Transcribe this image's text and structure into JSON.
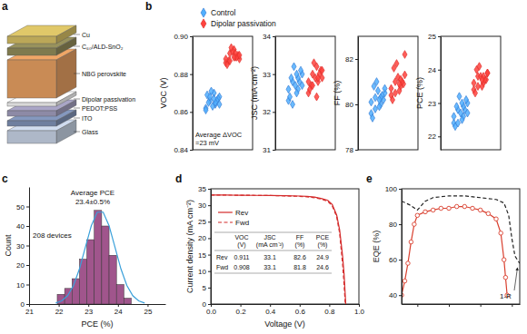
{
  "panel_labels": [
    "a",
    "b",
    "c",
    "d",
    "e"
  ],
  "diagram": {
    "layers": [
      "Cu",
      "C₆₀/ALD-SnO₂",
      "NBG perovskite",
      "Dipolar passivation",
      "PEDOT:PSS",
      "ITO",
      "Glass"
    ]
  },
  "chart_data": [
    {
      "type": "strip",
      "ylabel": "VOC (V)",
      "ylim": [
        0.84,
        0.9
      ],
      "yticks": [
        0.84,
        0.86,
        0.88,
        {
          "value": 0.9,
          "label": "0.90"
        }
      ],
      "tick_labels": "y",
      "legend": "top",
      "annotation": [
        "Average ΔVOC",
        "=23 mV"
      ],
      "series": [
        {
          "name": "Control",
          "color": "#3a7fd5",
          "marker": "diamond",
          "values": [
            0.862,
            0.864,
            0.866,
            0.868,
            0.87,
            0.865,
            0.867,
            0.863,
            0.869,
            0.866,
            0.871,
            0.861,
            0.865,
            0.868,
            0.864,
            0.867
          ]
        },
        {
          "name": "Dipolar passivation",
          "color": "#e0302c",
          "marker": "diamond",
          "values": [
            0.886,
            0.889,
            0.891,
            0.888,
            0.893,
            0.887,
            0.89,
            0.892,
            0.885,
            0.889,
            0.894,
            0.888,
            0.891,
            0.887,
            0.89,
            0.889
          ]
        }
      ]
    },
    {
      "type": "strip",
      "ylabel": "JSC (mA cm⁻²)",
      "ylim": [
        31,
        34
      ],
      "yticks": [
        31,
        32,
        33,
        34
      ],
      "tick_labels": "y",
      "series": [
        {
          "color": "#3a7fd5",
          "marker": "diamond",
          "values": [
            32.3,
            32.6,
            32.8,
            33.0,
            32.5,
            32.9,
            33.1,
            32.7,
            32.4,
            32.8,
            33.2,
            32.6,
            32.9,
            32.2,
            32.7,
            33.0
          ]
        },
        {
          "color": "#e0302c",
          "marker": "diamond",
          "values": [
            32.5,
            32.8,
            33.0,
            32.9,
            33.2,
            32.7,
            33.1,
            32.9,
            32.6,
            33.0,
            33.3,
            32.8,
            32.9,
            32.7,
            33.1,
            32.4
          ]
        }
      ]
    },
    {
      "type": "strip",
      "ylabel": "FF (%)",
      "ylim": [
        78,
        83
      ],
      "yticks": [
        78,
        80,
        82
      ],
      "tick_labels": "y",
      "series": [
        {
          "color": "#3a7fd5",
          "marker": "diamond",
          "values": [
            79.6,
            80.0,
            80.3,
            80.5,
            79.9,
            80.8,
            80.2,
            80.6,
            79.4,
            80.4,
            81.0,
            80.1,
            80.3,
            79.8,
            80.7,
            80.2
          ]
        },
        {
          "color": "#e0302c",
          "marker": "diamond",
          "values": [
            80.4,
            80.8,
            81.0,
            81.3,
            80.6,
            81.6,
            80.9,
            81.2,
            80.2,
            81.0,
            81.8,
            80.7,
            81.1,
            80.5,
            82.2,
            80.9
          ]
        }
      ]
    },
    {
      "type": "strip",
      "ylabel": "PCE (%)",
      "ylim": [
        21.6,
        25
      ],
      "yticks": [
        22,
        23,
        24,
        25
      ],
      "tick_labels": "y",
      "series": [
        {
          "color": "#3a7fd5",
          "marker": "diamond",
          "values": [
            22.4,
            22.6,
            22.8,
            23.0,
            22.5,
            22.9,
            23.1,
            22.7,
            22.3,
            22.8,
            23.2,
            22.6,
            22.9,
            22.4,
            22.7,
            23.0
          ]
        },
        {
          "color": "#e0302c",
          "marker": "diamond",
          "values": [
            23.4,
            23.6,
            23.8,
            23.9,
            23.5,
            24.0,
            23.7,
            23.8,
            23.3,
            23.7,
            24.1,
            23.6,
            23.8,
            23.5,
            23.9,
            23.7
          ]
        }
      ]
    },
    {
      "type": "histogram",
      "xlabel": "PCE (%)",
      "ylabel": "Count",
      "xlim": [
        21,
        25.6
      ],
      "xticks": [
        21,
        22,
        23,
        24,
        25
      ],
      "ylim": [
        0,
        60
      ],
      "yticks": [
        0,
        10,
        20,
        30,
        40,
        50
      ],
      "annotations": [
        "Average PCE",
        "23.4±0.5%",
        "208 devices"
      ],
      "series": [
        {
          "type": "bar",
          "color": "#a0558c",
          "bins": [
            21.95,
            22.2,
            22.45,
            22.7,
            22.95,
            23.2,
            23.45,
            23.7,
            23.95,
            24.2,
            24.45
          ],
          "values": [
            5,
            8,
            13,
            23,
            33,
            48,
            40,
            25,
            10,
            3
          ]
        },
        {
          "type": "line",
          "color": "#3aa0da",
          "x": [
            21.9,
            22.1,
            22.3,
            22.5,
            22.7,
            22.9,
            23.1,
            23.3,
            23.5,
            23.7,
            23.9,
            24.1,
            24.3,
            24.5,
            24.7,
            24.9
          ],
          "values": [
            0.5,
            1.6,
            4.3,
            9.5,
            18,
            29.1,
            40.1,
            47.1,
            47.1,
            40.1,
            29.1,
            18,
            9.5,
            4.3,
            1.6,
            0.5
          ]
        }
      ]
    },
    {
      "type": "line",
      "xlabel": "Voltage (V)",
      "ylabel": "Current density (mA cm⁻²)",
      "xlim": [
        0,
        1
      ],
      "xticks": [
        {
          "value": 0,
          "label": "0.0"
        },
        0.2,
        0.4,
        0.6,
        0.8,
        {
          "value": 1,
          "label": "1.0"
        }
      ],
      "ylim": [
        0,
        35
      ],
      "yticks": [
        0,
        5,
        10,
        15,
        20,
        25,
        30,
        35
      ],
      "legend": "left",
      "x": [
        0,
        0.1,
        0.2,
        0.3,
        0.4,
        0.5,
        0.6,
        0.65,
        0.7,
        0.75,
        0.79,
        0.82,
        0.85,
        0.87,
        0.89,
        0.9,
        0.908,
        0.911
      ],
      "series": [
        {
          "name": "Rev",
          "color": "#d42b2b",
          "line_style": "solid",
          "values": [
            33.1,
            33.08,
            33.05,
            33.0,
            32.95,
            32.9,
            32.8,
            32.7,
            32.5,
            32.0,
            31.5,
            30.2,
            27.0,
            22.5,
            14.5,
            9.0,
            2.5,
            0
          ]
        },
        {
          "name": "Fwd",
          "color": "#d42b2b",
          "line_style": "dashed",
          "values": [
            33.1,
            33.08,
            33.05,
            33.0,
            32.95,
            32.85,
            32.7,
            32.55,
            32.3,
            31.8,
            31.2,
            29.8,
            26.5,
            21.5,
            12.0,
            5.8,
            0,
            null
          ]
        }
      ],
      "table": {
        "columns": [
          [
            "VOC",
            "(V)"
          ],
          [
            "JSC",
            "(mA cm⁻²)"
          ],
          [
            "FF",
            "(%)"
          ],
          [
            "PCE",
            "(%)"
          ]
        ],
        "rows": [
          {
            "label": "Rev",
            "cells": [
              "0.911",
              "33.1",
              "82.6",
              "24.9"
            ]
          },
          {
            "label": "Fwd",
            "cells": [
              "0.908",
              "33.1",
              "81.8",
              "24.6"
            ]
          }
        ]
      }
    },
    {
      "type": "line",
      "ylabel": "EQE (%)",
      "xlim": [
        300,
        1050
      ],
      "xticks": [
        400,
        600,
        800,
        1000
      ],
      "ylim": [
        35,
        100
      ],
      "yticks": [
        40,
        60,
        80,
        100
      ],
      "tick_labels": "y",
      "series": [
        {
          "color": "#d9402f",
          "marker": "circle",
          "line_style": "solid",
          "x": [
            300,
            320,
            340,
            360,
            380,
            400,
            450,
            500,
            550,
            600,
            650,
            700,
            750,
            800,
            850,
            900,
            930,
            950,
            960,
            970
          ],
          "values": [
            40,
            48,
            58,
            70,
            80,
            85,
            87,
            88,
            89,
            89,
            90,
            90,
            89,
            88,
            86,
            83,
            75,
            60,
            50,
            40
          ]
        },
        {
          "name": "1-R",
          "color": "#222222",
          "line_style": "dashed",
          "x": [
            300,
            350,
            400,
            450,
            500,
            600,
            700,
            800,
            900,
            950,
            980,
            1000,
            1020,
            1050
          ],
          "values": [
            93,
            91,
            88,
            93,
            95,
            96,
            96,
            95,
            94,
            92,
            85,
            72,
            62,
            58
          ]
        }
      ]
    }
  ]
}
